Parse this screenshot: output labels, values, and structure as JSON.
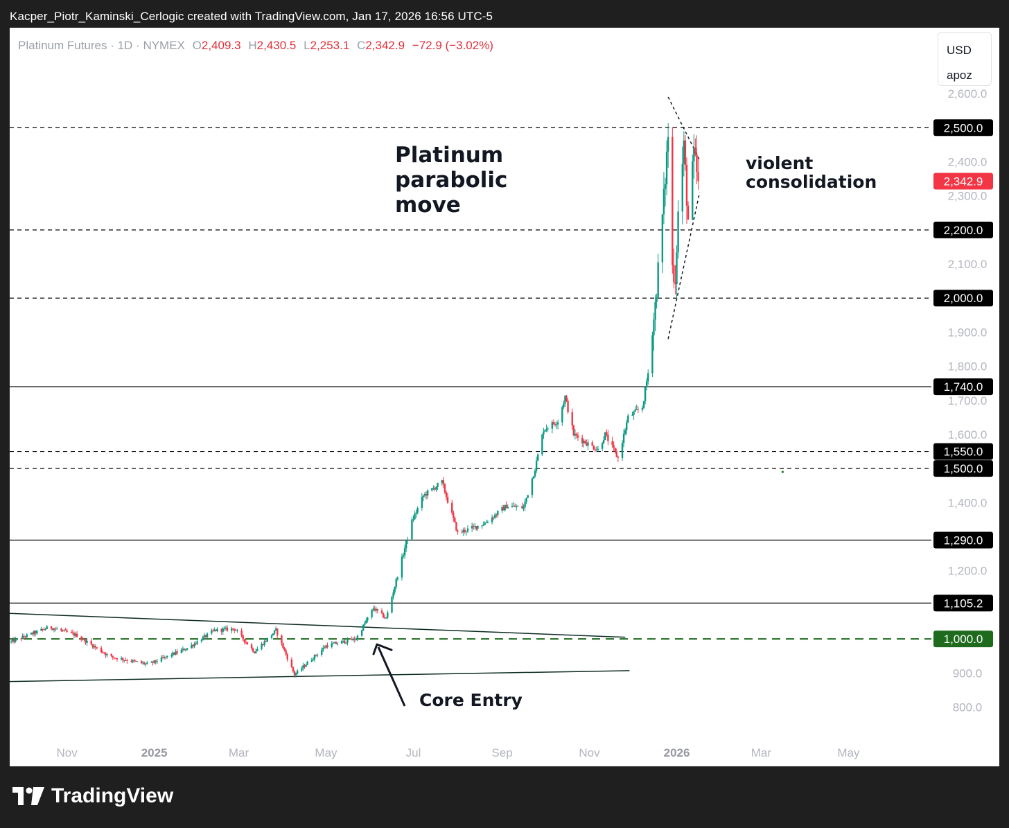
{
  "caption": "Kacper_Piotr_Kaminski_Cerlogic created with TradingView.com, Jan 17, 2026 16:56 UTC-5",
  "legend": {
    "symbol": "Platinum Futures · 1D · NYMEX",
    "o_label": "O",
    "o_value": "2,409.3",
    "h_label": "H",
    "h_value": "2,430.5",
    "l_label": "L",
    "l_value": "2,253.1",
    "c_label": "C",
    "c_value": "2,342.9",
    "change": "−72.9 (−3.02%)"
  },
  "currency_box": {
    "currency": "USD",
    "scale": "apoz"
  },
  "brand": {
    "name": "TradingView"
  },
  "annotations": {
    "parabolic": [
      "Platinum",
      "parabolic",
      "move"
    ],
    "consolidation": [
      "violent",
      "consolidation"
    ],
    "core_entry": "Core Entry"
  },
  "colors": {
    "up": "#089981",
    "down": "#f23645",
    "price_tag": "#f23645",
    "support_green": "#1e6b1e",
    "level_tag": "#000000",
    "axis_text": "#b2b5be"
  },
  "chart_data": {
    "type": "candlestick",
    "title": "",
    "y_ticks": [
      "800.0",
      "900.0",
      "1,000.0",
      "1,100.0",
      "1,200.0",
      "1,300.0",
      "1,400.0",
      "1,500.0",
      "1,600.0",
      "1,700.0",
      "1,800.0",
      "1,900.0",
      "2,000.0",
      "2,100.0",
      "2,200.0",
      "2,300.0",
      "2,400.0",
      "2,500.0",
      "2,600.0"
    ],
    "y_tick_values": [
      800,
      900,
      1000,
      1100,
      1200,
      1300,
      1400,
      1500,
      1600,
      1700,
      1800,
      1900,
      2000,
      2100,
      2200,
      2300,
      2400,
      2500,
      2600
    ],
    "ylim": [
      700,
      2720
    ],
    "x_ticks": [
      {
        "label": "Nov",
        "date": "2024-11-01",
        "bold": false
      },
      {
        "label": "2025",
        "date": "2025-01-01",
        "bold": true
      },
      {
        "label": "Mar",
        "date": "2025-03-01",
        "bold": false
      },
      {
        "label": "May",
        "date": "2025-05-01",
        "bold": false
      },
      {
        "label": "Jul",
        "date": "2025-07-01",
        "bold": false
      },
      {
        "label": "Sep",
        "date": "2025-09-01",
        "bold": false
      },
      {
        "label": "Nov",
        "date": "2025-11-01",
        "bold": false
      },
      {
        "label": "2026",
        "date": "2026-01-01",
        "bold": true
      },
      {
        "label": "Mar",
        "date": "2026-03-01",
        "bold": false
      },
      {
        "label": "May",
        "date": "2026-05-01",
        "bold": false
      }
    ],
    "xlim": [
      "2024-09-22",
      "2026-06-25"
    ],
    "levels": [
      {
        "value": 2500,
        "label": "2,500.0",
        "style": "dashed",
        "color": "#000000"
      },
      {
        "value": 2200,
        "label": "2,200.0",
        "style": "dashed",
        "color": "#000000"
      },
      {
        "value": 2000,
        "label": "2,000.0",
        "style": "dashed",
        "color": "#000000"
      },
      {
        "value": 1740,
        "label": "1,740.0",
        "style": "solid",
        "color": "#000000"
      },
      {
        "value": 1550,
        "label": "1,550.0",
        "style": "dashed",
        "color": "#000000"
      },
      {
        "value": 1500,
        "label": "1,500.0",
        "style": "dashed",
        "color": "#000000"
      },
      {
        "value": 1290,
        "label": "1,290.0",
        "style": "solid",
        "color": "#000000"
      },
      {
        "value": 1105.2,
        "label": "1,105.2",
        "style": "solid",
        "color": "#000000"
      },
      {
        "value": 1000,
        "label": "1,000.0",
        "style": "dashed-green",
        "color": "#1e6b1e"
      }
    ],
    "last_price": {
      "value": 2342.9,
      "label": "2,342.9"
    },
    "trendlines": [
      {
        "from": {
          "date": "2024-09-22",
          "price": 1075
        },
        "to": {
          "date": "2025-11-26",
          "price": 1005
        },
        "style": "solid"
      },
      {
        "from": {
          "date": "2024-09-22",
          "price": 875
        },
        "to": {
          "date": "2025-11-29",
          "price": 907
        },
        "style": "solid"
      },
      {
        "from": {
          "date": "2025-12-26",
          "price": 2590
        },
        "to": {
          "date": "2026-01-17",
          "price": 2405
        },
        "style": "dotted"
      },
      {
        "from": {
          "date": "2025-12-26",
          "price": 1880
        },
        "to": {
          "date": "2026-01-17",
          "price": 2310
        },
        "style": "dotted"
      }
    ],
    "anchors": [
      {
        "date": "2024-09-22",
        "price": 990
      },
      {
        "date": "2024-10-20",
        "price": 1035
      },
      {
        "date": "2024-11-08",
        "price": 1010
      },
      {
        "date": "2024-12-01",
        "price": 948
      },
      {
        "date": "2024-12-28",
        "price": 925
      },
      {
        "date": "2025-01-25",
        "price": 975
      },
      {
        "date": "2025-02-12",
        "price": 1025
      },
      {
        "date": "2025-02-26",
        "price": 1030
      },
      {
        "date": "2025-03-12",
        "price": 962
      },
      {
        "date": "2025-03-27",
        "price": 1025
      },
      {
        "date": "2025-04-09",
        "price": 895
      },
      {
        "date": "2025-05-01",
        "price": 980
      },
      {
        "date": "2025-05-22",
        "price": 1000
      },
      {
        "date": "2025-06-03",
        "price": 1090
      },
      {
        "date": "2025-06-12",
        "price": 1060
      },
      {
        "date": "2025-06-30",
        "price": 1345
      },
      {
        "date": "2025-07-08",
        "price": 1420
      },
      {
        "date": "2025-07-21",
        "price": 1460
      },
      {
        "date": "2025-08-01",
        "price": 1310
      },
      {
        "date": "2025-08-20",
        "price": 1340
      },
      {
        "date": "2025-09-04",
        "price": 1390
      },
      {
        "date": "2025-09-16",
        "price": 1385
      },
      {
        "date": "2025-09-24",
        "price": 1500
      },
      {
        "date": "2025-09-30",
        "price": 1615
      },
      {
        "date": "2025-10-10",
        "price": 1640
      },
      {
        "date": "2025-10-15",
        "price": 1710
      },
      {
        "date": "2025-10-21",
        "price": 1600
      },
      {
        "date": "2025-10-28",
        "price": 1580
      },
      {
        "date": "2025-11-07",
        "price": 1555
      },
      {
        "date": "2025-11-12",
        "price": 1600
      },
      {
        "date": "2025-11-21",
        "price": 1530
      },
      {
        "date": "2025-11-28",
        "price": 1650
      },
      {
        "date": "2025-12-08",
        "price": 1680
      },
      {
        "date": "2025-12-12",
        "price": 1780
      },
      {
        "date": "2025-12-17",
        "price": 1980
      },
      {
        "date": "2025-12-23",
        "price": 2290
      },
      {
        "date": "2025-12-26",
        "price": 2480
      },
      {
        "date": "2025-12-29",
        "price": 2090
      },
      {
        "date": "2025-12-31",
        "price": 2060
      },
      {
        "date": "2026-01-02",
        "price": 2250
      },
      {
        "date": "2026-01-06",
        "price": 2440
      },
      {
        "date": "2026-01-09",
        "price": 2230
      },
      {
        "date": "2026-01-13",
        "price": 2415
      },
      {
        "date": "2026-01-16",
        "price": 2342.9
      }
    ],
    "right_dot": {
      "date": "2026-03-16",
      "price": 1490
    }
  }
}
